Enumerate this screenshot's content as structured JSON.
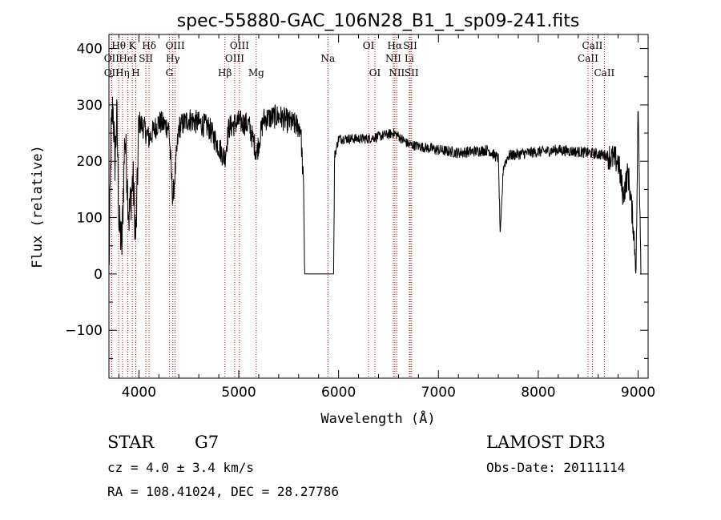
{
  "chart_data": {
    "type": "line",
    "title": "spec-55880-GAC_106N28_B1_1_sp09-241.fits",
    "xlabel": "Wavelength (Å)",
    "ylabel": "Flux (relative)",
    "xlim": [
      3700,
      9100
    ],
    "ylim": [
      -185,
      425
    ],
    "xticks": [
      4000,
      5000,
      6000,
      7000,
      8000,
      9000
    ],
    "yticks": [
      -100,
      0,
      100,
      200,
      300,
      400
    ],
    "ytick_labels": [
      "−100",
      "0",
      "100",
      "200",
      "300",
      "400"
    ],
    "spectrum_anchors": [
      [
        3700,
        0
      ],
      [
        3720,
        240
      ],
      [
        3740,
        300
      ],
      [
        3760,
        200
      ],
      [
        3780,
        280
      ],
      [
        3800,
        90
      ],
      [
        3830,
        50
      ],
      [
        3860,
        250
      ],
      [
        3900,
        100
      ],
      [
        3940,
        170
      ],
      [
        3970,
        60
      ],
      [
        4000,
        270
      ],
      [
        4050,
        260
      ],
      [
        4100,
        240
      ],
      [
        4200,
        270
      ],
      [
        4300,
        260
      ],
      [
        4340,
        130
      ],
      [
        4400,
        260
      ],
      [
        4500,
        275
      ],
      [
        4700,
        260
      ],
      [
        4860,
        205
      ],
      [
        4900,
        260
      ],
      [
        5000,
        270
      ],
      [
        5100,
        265
      ],
      [
        5180,
        215
      ],
      [
        5250,
        275
      ],
      [
        5400,
        280
      ],
      [
        5500,
        270
      ],
      [
        5620,
        260
      ],
      [
        5650,
        150
      ],
      [
        5660,
        0
      ],
      [
        5950,
        0
      ],
      [
        5960,
        210
      ],
      [
        6000,
        240
      ],
      [
        6300,
        240
      ],
      [
        6560,
        250
      ],
      [
        6700,
        230
      ],
      [
        7000,
        220
      ],
      [
        7200,
        215
      ],
      [
        7500,
        220
      ],
      [
        7600,
        205
      ],
      [
        7620,
        65
      ],
      [
        7650,
        190
      ],
      [
        7700,
        210
      ],
      [
        7900,
        215
      ],
      [
        8200,
        220
      ],
      [
        8500,
        215
      ],
      [
        8700,
        210
      ],
      [
        8800,
        200
      ],
      [
        8850,
        140
      ],
      [
        8900,
        180
      ],
      [
        8950,
        90
      ],
      [
        8980,
        10
      ],
      [
        9000,
        300
      ],
      [
        9030,
        0
      ]
    ],
    "spectral_lines": [
      {
        "label": "OII",
        "wavelength": 3727,
        "row": 1
      },
      {
        "label": "Hθ",
        "wavelength": 3798,
        "row": 0
      },
      {
        "label": "OII",
        "wavelength": 3727,
        "row": 2
      },
      {
        "label": "Hη",
        "wavelength": 3835,
        "row": 2
      },
      {
        "label": "HeI",
        "wavelength": 3889,
        "row": 1
      },
      {
        "label": "K",
        "wavelength": 3934,
        "row": 0
      },
      {
        "label": "H",
        "wavelength": 3969,
        "row": 2
      },
      {
        "label": "SII",
        "wavelength": 4070,
        "row": 1
      },
      {
        "label": "Hδ",
        "wavelength": 4102,
        "row": 0
      },
      {
        "label": "OIII",
        "wavelength": 4363,
        "row": 0
      },
      {
        "label": "Hγ",
        "wavelength": 4340,
        "row": 1
      },
      {
        "label": "G",
        "wavelength": 4305,
        "row": 2
      },
      {
        "label": "Hβ",
        "wavelength": 4861,
        "row": 2
      },
      {
        "label": "OIII",
        "wavelength": 5007,
        "row": 0
      },
      {
        "label": "OIII",
        "wavelength": 4959,
        "row": 1
      },
      {
        "label": "Mg",
        "wavelength": 5175,
        "row": 2
      },
      {
        "label": "Na",
        "wavelength": 5893,
        "row": 1
      },
      {
        "label": "OI",
        "wavelength": 6300,
        "row": 0
      },
      {
        "label": "OI",
        "wavelength": 6364,
        "row": 2
      },
      {
        "label": "Hα",
        "wavelength": 6563,
        "row": 0
      },
      {
        "label": "SII",
        "wavelength": 6717,
        "row": 0
      },
      {
        "label": "NII",
        "wavelength": 6548,
        "row": 1
      },
      {
        "label": "Li",
        "wavelength": 6708,
        "row": 1
      },
      {
        "label": "NII",
        "wavelength": 6583,
        "row": 2
      },
      {
        "label": "SII",
        "wavelength": 6731,
        "row": 2
      },
      {
        "label": "CaII",
        "wavelength": 8542,
        "row": 0
      },
      {
        "label": "CaII",
        "wavelength": 8498,
        "row": 1
      },
      {
        "label": "CaII",
        "wavelength": 8662,
        "row": 2
      }
    ]
  },
  "info": {
    "object_class": "STAR",
    "subclass": "G7",
    "survey": "LAMOST DR3",
    "cz": "cz = 4.0 ± 3.4 km/s",
    "obs_date": "Obs-Date: 20111114",
    "radec": "RA = 108.41024, DEC =  28.27786"
  }
}
